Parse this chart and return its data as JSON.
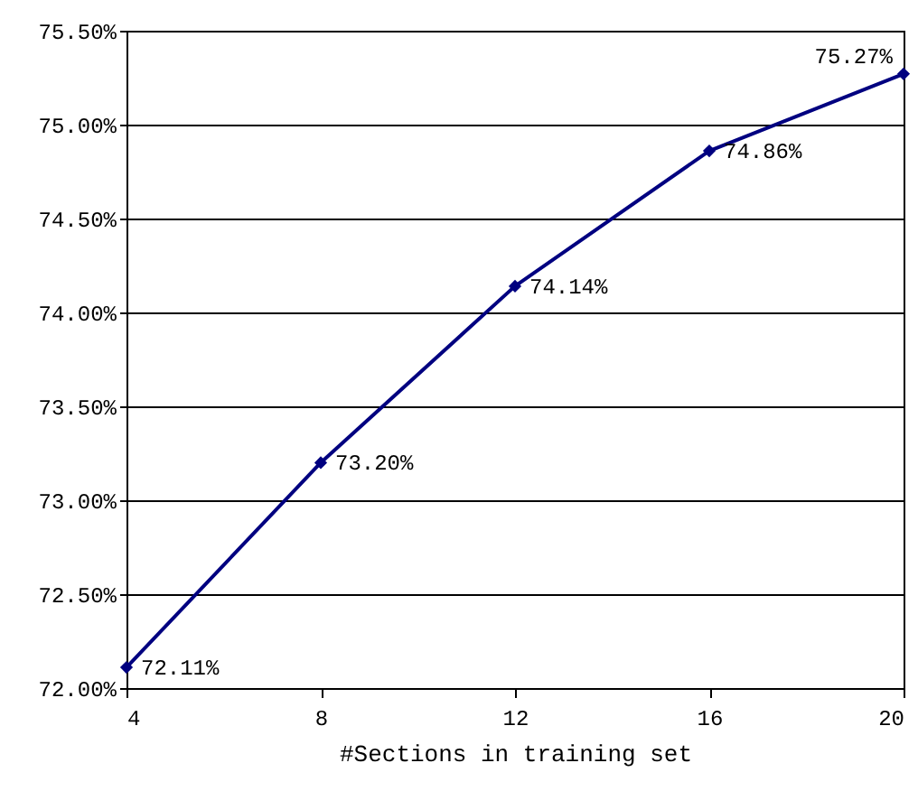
{
  "chart_data": {
    "type": "line",
    "xlabel": "#Sections in training set",
    "x": [
      4,
      8,
      12,
      16,
      20
    ],
    "series": [
      {
        "color": "#000080",
        "values": [
          72.11,
          73.2,
          74.14,
          74.86,
          75.27
        ],
        "value_labels": [
          "72.11%",
          "73.20%",
          "74.14%",
          "74.86%",
          "75.27%"
        ]
      }
    ],
    "xlim": [
      4,
      20
    ],
    "xticks": [
      4,
      8,
      12,
      16,
      20
    ],
    "ylim": [
      72,
      75.5
    ],
    "yticks": [
      {
        "value": 72,
        "label": "72.00%"
      },
      {
        "value": 72.5,
        "label": "72.50%"
      },
      {
        "value": 73,
        "label": "73.00%"
      },
      {
        "value": 73.5,
        "label": "73.50%"
      },
      {
        "value": 74,
        "label": "74.00%"
      },
      {
        "value": 74.5,
        "label": "74.50%"
      },
      {
        "value": 75,
        "label": "75.00%"
      },
      {
        "value": 75.5,
        "label": "75.50%"
      }
    ],
    "grid": "y",
    "marker": "diamond",
    "line_style": "solid"
  }
}
